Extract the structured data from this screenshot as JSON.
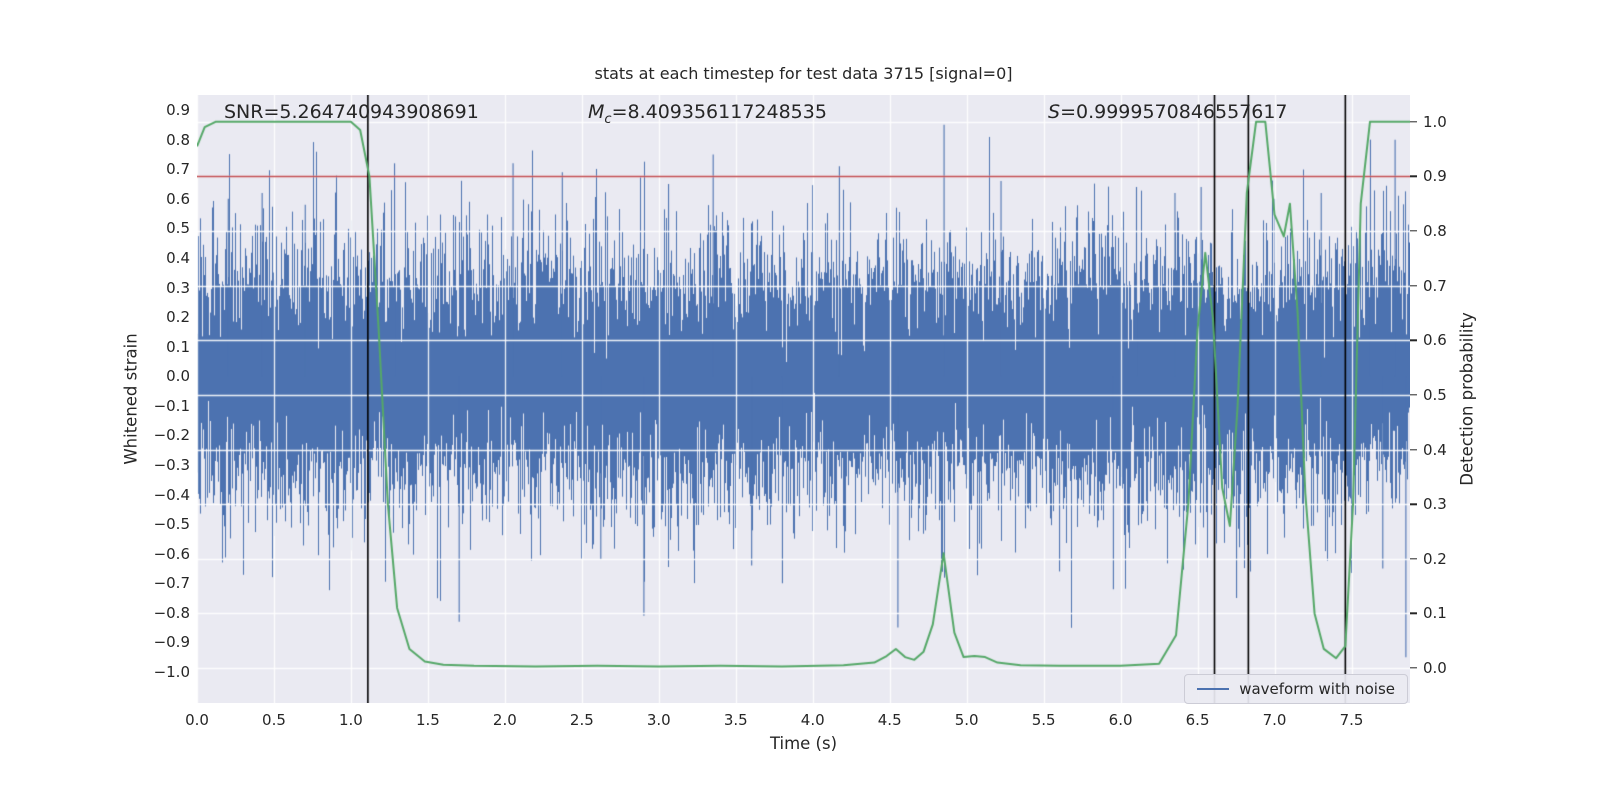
{
  "title": "stats at each timestep for test data 3715 [signal=0]",
  "annotations": {
    "snr": "SNR=5.264740943908691",
    "mc_symbol": "M",
    "mc_subscript": "c",
    "mc_value": "=8.409356117248535",
    "s_symbol": "S",
    "s_value": "=0.9999570846557617"
  },
  "axes": {
    "x": {
      "label": "Time (s)",
      "min": 0,
      "max": 7.88,
      "tick_values": [
        0.0,
        0.5,
        1.0,
        1.5,
        2.0,
        2.5,
        3.0,
        3.5,
        4.0,
        4.5,
        5.0,
        5.5,
        6.0,
        6.5,
        7.0,
        7.5
      ],
      "tick_labels": [
        "0.0",
        "0.5",
        "1.0",
        "1.5",
        "2.0",
        "2.5",
        "3.0",
        "3.5",
        "4.0",
        "4.5",
        "5.0",
        "5.5",
        "6.0",
        "6.5",
        "7.0",
        "7.5"
      ]
    },
    "y_left": {
      "label": "Whitened strain",
      "min": -1.105,
      "max": 0.951,
      "tick_values": [
        0.9,
        0.8,
        0.7,
        0.6,
        0.5,
        0.4,
        0.3,
        0.2,
        0.1,
        0.0,
        -0.1,
        -0.2,
        -0.3,
        -0.4,
        -0.5,
        -0.6,
        -0.7,
        -0.8,
        -0.9,
        -1.0
      ],
      "tick_labels": [
        "0.9",
        "0.8",
        "0.7",
        "0.6",
        "0.5",
        "0.4",
        "0.3",
        "0.2",
        "0.1",
        "0.0",
        "−0.1",
        "−0.2",
        "−0.3",
        "−0.4",
        "−0.5",
        "−0.6",
        "−0.7",
        "−0.8",
        "−0.9",
        "−1.0"
      ]
    },
    "y_right": {
      "label": "Detection probability",
      "min": -0.064,
      "max": 1.049,
      "tick_values": [
        1.0,
        0.9,
        0.8,
        0.7,
        0.6,
        0.5,
        0.4,
        0.3,
        0.2,
        0.1,
        0.0
      ],
      "tick_labels": [
        "1.0",
        "0.9",
        "0.8",
        "0.7",
        "0.6",
        "0.5",
        "0.4",
        "0.3",
        "0.2",
        "0.1",
        "0.0"
      ]
    }
  },
  "legend": {
    "label": "waveform with noise"
  },
  "colors": {
    "noise": "#4c72b0",
    "probability": "#55a868",
    "threshold": "#c44e52",
    "event_line": "#000000",
    "axes_bg": "#eaeaf2",
    "grid": "#ffffff",
    "text": "#262626"
  },
  "chart_data": {
    "type": "line",
    "title": "stats at each timestep for test data 3715 [signal=0]",
    "xlabel": "Time (s)",
    "ylabel_left": "Whitened strain",
    "ylabel_right": "Detection probability",
    "xlim": [
      0,
      7.88
    ],
    "ylim_left": [
      -1.105,
      0.951
    ],
    "ylim_right": [
      -0.064,
      1.049
    ],
    "grid": "white on #eaeaf2, x ticks every 0.5s, right-axis ticks every 0.1",
    "legend_position": "lower right",
    "threshold_line": {
      "axis": "right",
      "y": 0.9,
      "color": "#c44e52"
    },
    "event_lines_x": [
      1.11,
      6.61,
      6.83,
      7.46
    ],
    "series": [
      {
        "name": "waveform with noise",
        "axis": "left",
        "kind": "gaussian_noise",
        "color": "#4c72b0",
        "seed": 3715,
        "std": 0.21,
        "samples_per_column": 13,
        "notable_peaks_t": [
          0.2,
          0.42,
          0.7,
          1.28,
          1.7,
          2.05,
          2.37,
          2.62,
          2.9,
          3.06,
          3.35,
          3.6,
          3.8,
          4.17,
          4.55,
          4.85,
          5.22,
          5.6,
          5.95,
          6.1,
          6.35,
          6.52,
          6.75,
          7.0,
          7.3,
          7.62,
          7.7,
          7.78,
          7.85
        ],
        "notable_peaks_v": [
          0.6,
          0.62,
          0.58,
          0.72,
          -0.83,
          0.72,
          0.69,
          -0.62,
          -0.81,
          0.65,
          0.75,
          -0.64,
          -0.7,
          0.71,
          -0.85,
          0.85,
          0.66,
          -0.66,
          -0.72,
          0.64,
          0.62,
          0.64,
          -0.75,
          0.6,
          0.62,
          0.8,
          -0.65,
          0.8,
          -0.95
        ]
      },
      {
        "name": "detection probability",
        "axis": "right",
        "kind": "line",
        "color": "#55a868",
        "x": [
          0.0,
          0.05,
          0.12,
          0.3,
          0.6,
          0.9,
          1.0,
          1.06,
          1.12,
          1.18,
          1.24,
          1.3,
          1.38,
          1.48,
          1.6,
          1.8,
          2.2,
          2.6,
          3.0,
          3.4,
          3.8,
          4.2,
          4.4,
          4.48,
          4.54,
          4.6,
          4.66,
          4.72,
          4.78,
          4.85,
          4.92,
          4.98,
          5.05,
          5.12,
          5.2,
          5.35,
          5.6,
          6.0,
          6.25,
          6.36,
          6.44,
          6.5,
          6.55,
          6.6,
          6.66,
          6.71,
          6.76,
          6.82,
          6.88,
          6.94,
          7.0,
          7.06,
          7.1,
          7.15,
          7.2,
          7.26,
          7.32,
          7.4,
          7.46,
          7.51,
          7.56,
          7.62,
          7.7,
          7.8,
          7.88
        ],
        "y": [
          0.955,
          0.99,
          1.0,
          1.0,
          1.0,
          1.0,
          1.0,
          0.985,
          0.9,
          0.62,
          0.3,
          0.11,
          0.035,
          0.012,
          0.006,
          0.004,
          0.003,
          0.004,
          0.003,
          0.004,
          0.003,
          0.005,
          0.01,
          0.022,
          0.035,
          0.02,
          0.015,
          0.03,
          0.08,
          0.21,
          0.065,
          0.02,
          0.022,
          0.02,
          0.01,
          0.005,
          0.004,
          0.004,
          0.008,
          0.06,
          0.3,
          0.62,
          0.76,
          0.64,
          0.33,
          0.26,
          0.48,
          0.87,
          1.0,
          1.0,
          0.83,
          0.79,
          0.85,
          0.65,
          0.32,
          0.1,
          0.035,
          0.018,
          0.04,
          0.3,
          0.85,
          1.0,
          1.0,
          1.0,
          1.0
        ]
      }
    ]
  }
}
